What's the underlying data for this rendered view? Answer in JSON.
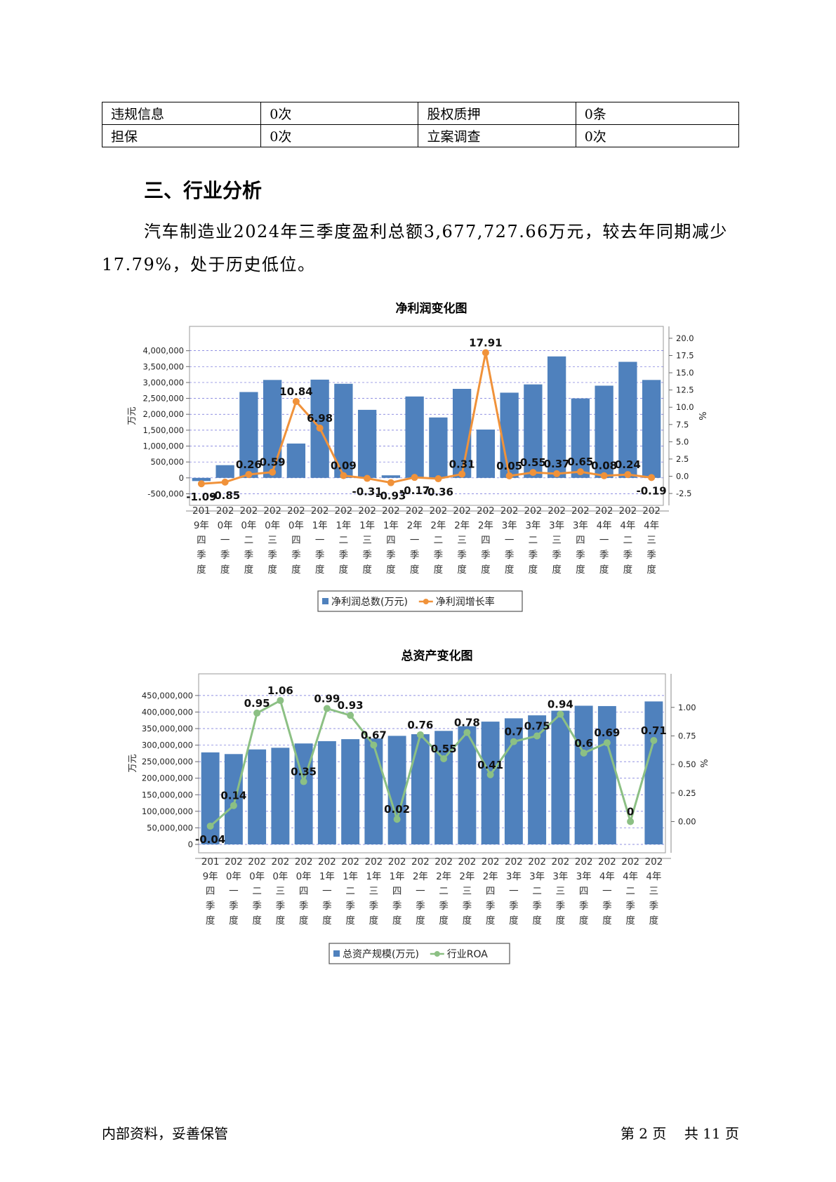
{
  "table": {
    "rows": [
      [
        "违规信息",
        "0次",
        "股权质押",
        "0条"
      ],
      [
        "担保",
        "0次",
        "立案调查",
        "0次"
      ]
    ]
  },
  "section_title": "三、行业分析",
  "paragraph": "汽车制造业2024年三季度盈利总额3,677,727.66万元，较去年同期减少17.79%，处于历史低位。",
  "footer": {
    "left": "内部资料，妥善保管",
    "right": "第 2 页    共 11 页"
  },
  "colors": {
    "bar": "#4f81bd",
    "line1": "#f0923a",
    "line2": "#8cc084",
    "grid": "#3d3dcc"
  },
  "chart_data": [
    {
      "type": "bar",
      "title": "净利润变化图",
      "categories": [
        "2019年四季度",
        "2020年一季度",
        "2020年二季度",
        "2020年三季度",
        "2020年四季度",
        "2021年一季度",
        "2021年二季度",
        "2021年三季度",
        "2021年四季度",
        "2022年一季度",
        "2022年二季度",
        "2022年三季度",
        "2022年四季度",
        "2023年一季度",
        "2023年二季度",
        "2023年三季度",
        "2023年四季度",
        "2024年一季度",
        "2024年二季度",
        "2024年三季度"
      ],
      "tick_labels": [
        [
          "201",
          "9年",
          "四",
          "季",
          "度"
        ],
        [
          "202",
          "0年",
          "一",
          "季",
          "度"
        ],
        [
          "202",
          "0年",
          "二",
          "季",
          "度"
        ],
        [
          "202",
          "0年",
          "三",
          "季",
          "度"
        ],
        [
          "202",
          "0年",
          "四",
          "季",
          "度"
        ],
        [
          "202",
          "1年",
          "一",
          "季",
          "度"
        ],
        [
          "202",
          "1年",
          "二",
          "季",
          "度"
        ],
        [
          "202",
          "1年",
          "三",
          "季",
          "度"
        ],
        [
          "202",
          "1年",
          "四",
          "季",
          "度"
        ],
        [
          "202",
          "2年",
          "一",
          "季",
          "度"
        ],
        [
          "202",
          "2年",
          "二",
          "季",
          "度"
        ],
        [
          "202",
          "2年",
          "三",
          "季",
          "度"
        ],
        [
          "202",
          "2年",
          "四",
          "季",
          "度"
        ],
        [
          "202",
          "3年",
          "一",
          "季",
          "度"
        ],
        [
          "202",
          "3年",
          "二",
          "季",
          "度"
        ],
        [
          "202",
          "3年",
          "三",
          "季",
          "度"
        ],
        [
          "202",
          "3年",
          "四",
          "季",
          "度"
        ],
        [
          "202",
          "4年",
          "一",
          "季",
          "度"
        ],
        [
          "202",
          "4年",
          "二",
          "季",
          "度"
        ],
        [
          "202",
          "4年",
          "三",
          "季",
          "度"
        ]
      ],
      "series": [
        {
          "name": "净利润总数(万元)",
          "type": "bar",
          "axis": "left",
          "values": [
            -100000,
            400000,
            2700000,
            3080000,
            1080000,
            3090000,
            2960000,
            2140000,
            80000,
            2560000,
            1900000,
            2800000,
            1520000,
            2680000,
            2940000,
            3820000,
            2500000,
            2900000,
            3650000,
            3080000
          ]
        },
        {
          "name": "净利润增长率",
          "type": "line",
          "axis": "right",
          "values": [
            -1.09,
            -0.85,
            0.26,
            0.59,
            10.84,
            6.98,
            0.09,
            -0.31,
            -0.93,
            -0.17,
            -0.36,
            0.31,
            17.91,
            0.05,
            0.55,
            0.37,
            0.65,
            0.08,
            0.24,
            -0.19
          ],
          "labels": [
            "-1.09",
            "-0.85",
            "0.26",
            "0.59",
            "10.84",
            "6.98",
            "0.09",
            "-0.31",
            "-0.93",
            "-0.17",
            "-0.36",
            "0.31",
            "17.91",
            "0.05",
            "0.55",
            "0.37",
            "0.65",
            "0.08",
            "0.24",
            "-0.19"
          ]
        }
      ],
      "ylabel": "万元",
      "y2label": "%",
      "ylim": [
        -600000,
        4500000
      ],
      "y2lim": [
        -3.0,
        20.5
      ],
      "yticks": [
        -500000,
        0,
        500000,
        1000000,
        1500000,
        2000000,
        2500000,
        3000000,
        3500000,
        4000000
      ],
      "ytick_labels": [
        "-500,000",
        "0",
        "500,000",
        "1,000,000",
        "1,500,000",
        "2,000,000",
        "2,500,000",
        "3,000,000",
        "3,500,000",
        "4,000,000"
      ],
      "y2ticks": [
        -2.5,
        0.0,
        2.5,
        5.0,
        7.5,
        10.0,
        12.5,
        15.0,
        17.5,
        20.0
      ],
      "y2tick_labels": [
        "-2.5",
        "0.0",
        "2.5",
        "5.0",
        "7.5",
        "10.0",
        "12.5",
        "15.0",
        "17.5",
        "20.0"
      ],
      "grid": true,
      "legend": "bottom"
    },
    {
      "type": "bar",
      "title": "总资产变化图",
      "categories": [
        "2019年四季度",
        "2020年一季度",
        "2020年二季度",
        "2020年三季度",
        "2020年四季度",
        "2021年一季度",
        "2021年二季度",
        "2021年三季度",
        "2021年四季度",
        "2022年一季度",
        "2022年二季度",
        "2022年三季度",
        "2022年四季度",
        "2023年一季度",
        "2023年二季度",
        "2023年三季度",
        "2023年四季度",
        "2024年一季度",
        "2024年二季度",
        "2024年三季度"
      ],
      "tick_labels": [
        [
          "201",
          "9年",
          "四",
          "季",
          "度"
        ],
        [
          "202",
          "0年",
          "一",
          "季",
          "度"
        ],
        [
          "202",
          "0年",
          "二",
          "季",
          "度"
        ],
        [
          "202",
          "0年",
          "三",
          "季",
          "度"
        ],
        [
          "202",
          "0年",
          "四",
          "季",
          "度"
        ],
        [
          "202",
          "1年",
          "一",
          "季",
          "度"
        ],
        [
          "202",
          "1年",
          "二",
          "季",
          "度"
        ],
        [
          "202",
          "1年",
          "三",
          "季",
          "度"
        ],
        [
          "202",
          "1年",
          "四",
          "季",
          "度"
        ],
        [
          "202",
          "2年",
          "一",
          "季",
          "度"
        ],
        [
          "202",
          "2年",
          "二",
          "季",
          "度"
        ],
        [
          "202",
          "2年",
          "三",
          "季",
          "度"
        ],
        [
          "202",
          "2年",
          "四",
          "季",
          "度"
        ],
        [
          "202",
          "3年",
          "一",
          "季",
          "度"
        ],
        [
          "202",
          "3年",
          "二",
          "季",
          "度"
        ],
        [
          "202",
          "3年",
          "三",
          "季",
          "度"
        ],
        [
          "202",
          "3年",
          "四",
          "季",
          "度"
        ],
        [
          "202",
          "4年",
          "一",
          "季",
          "度"
        ],
        [
          "202",
          "4年",
          "二",
          "季",
          "度"
        ],
        [
          "202",
          "4年",
          "三",
          "季",
          "度"
        ]
      ],
      "series": [
        {
          "name": "总资产规模(万元)",
          "type": "bar",
          "axis": "left",
          "values": [
            278000000,
            273000000,
            287000000,
            292000000,
            305000000,
            312000000,
            318000000,
            320000000,
            328000000,
            333000000,
            343000000,
            357000000,
            371000000,
            381000000,
            390000000,
            404000000,
            419000000,
            418000000,
            null,
            432000000
          ]
        },
        {
          "name": "行业ROA",
          "type": "line",
          "axis": "right",
          "values": [
            -0.04,
            0.14,
            0.95,
            1.06,
            0.35,
            0.99,
            0.93,
            0.67,
            0.02,
            0.76,
            0.55,
            0.78,
            0.41,
            0.7,
            0.75,
            0.94,
            0.6,
            0.69,
            0,
            0.71
          ],
          "labels": [
            "-0.04",
            "0.14",
            "0.95",
            "1.06",
            "0.35",
            "0.99",
            "0.93",
            "0.67",
            "0.02",
            "0.76",
            "0.55",
            "0.78",
            "0.41",
            "0.7",
            "0.75",
            "0.94",
            "0.6",
            "0.69",
            "0",
            "0.71"
          ]
        }
      ],
      "ylabel": "万元",
      "y2label": "%",
      "ylim": [
        0,
        490000000
      ],
      "y2lim": [
        -0.2,
        1.22
      ],
      "yticks": [
        0,
        50000000,
        100000000,
        150000000,
        200000000,
        250000000,
        300000000,
        350000000,
        400000000,
        450000000
      ],
      "ytick_labels": [
        "0",
        "50,000,000",
        "100,000,000",
        "150,000,000",
        "200,000,000",
        "250,000,000",
        "300,000,000",
        "350,000,000",
        "400,000,000",
        "450,000,000"
      ],
      "y2ticks": [
        0.0,
        0.25,
        0.5,
        0.75,
        1.0
      ],
      "y2tick_labels": [
        "0.00",
        "0.25",
        "0.50",
        "0.75",
        "1.00"
      ],
      "grid": true,
      "legend": "bottom"
    }
  ]
}
